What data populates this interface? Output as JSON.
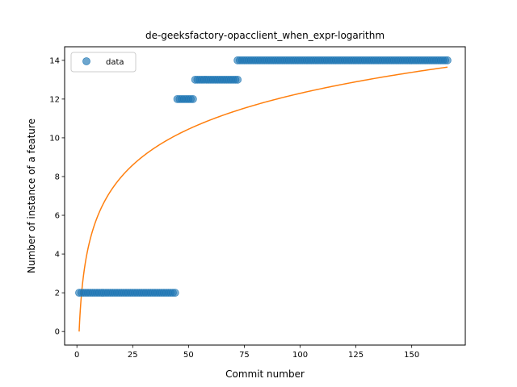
{
  "chart_data": {
    "type": "scatter",
    "title": "de-geeksfactory-opacclient_when_expr-logarithm",
    "xlabel": "Commit number",
    "ylabel": "Number of instance of a feature",
    "xlim": [
      -5.5,
      174
    ],
    "ylim": [
      -0.7,
      14.7
    ],
    "xticks": [
      0,
      25,
      50,
      75,
      100,
      125,
      150
    ],
    "yticks": [
      0,
      2,
      4,
      6,
      8,
      10,
      12,
      14
    ],
    "grid": false,
    "legend_position": "top-left",
    "series": [
      {
        "name": "data",
        "kind": "points",
        "color": "#1f77b4",
        "segments": [
          {
            "x_start": 1,
            "x_end": 44,
            "y": 2
          },
          {
            "x_start": 45,
            "x_end": 52,
            "y": 12
          },
          {
            "x_start": 53,
            "x_end": 72,
            "y": 13
          },
          {
            "x_start": 72,
            "x_end": 166,
            "y": 14
          }
        ]
      },
      {
        "kind": "fit-line",
        "color": "#ff7f0e",
        "model": "logarithm",
        "a": 2.67,
        "b": 0,
        "x_start": 1,
        "x_end": 166
      }
    ]
  }
}
